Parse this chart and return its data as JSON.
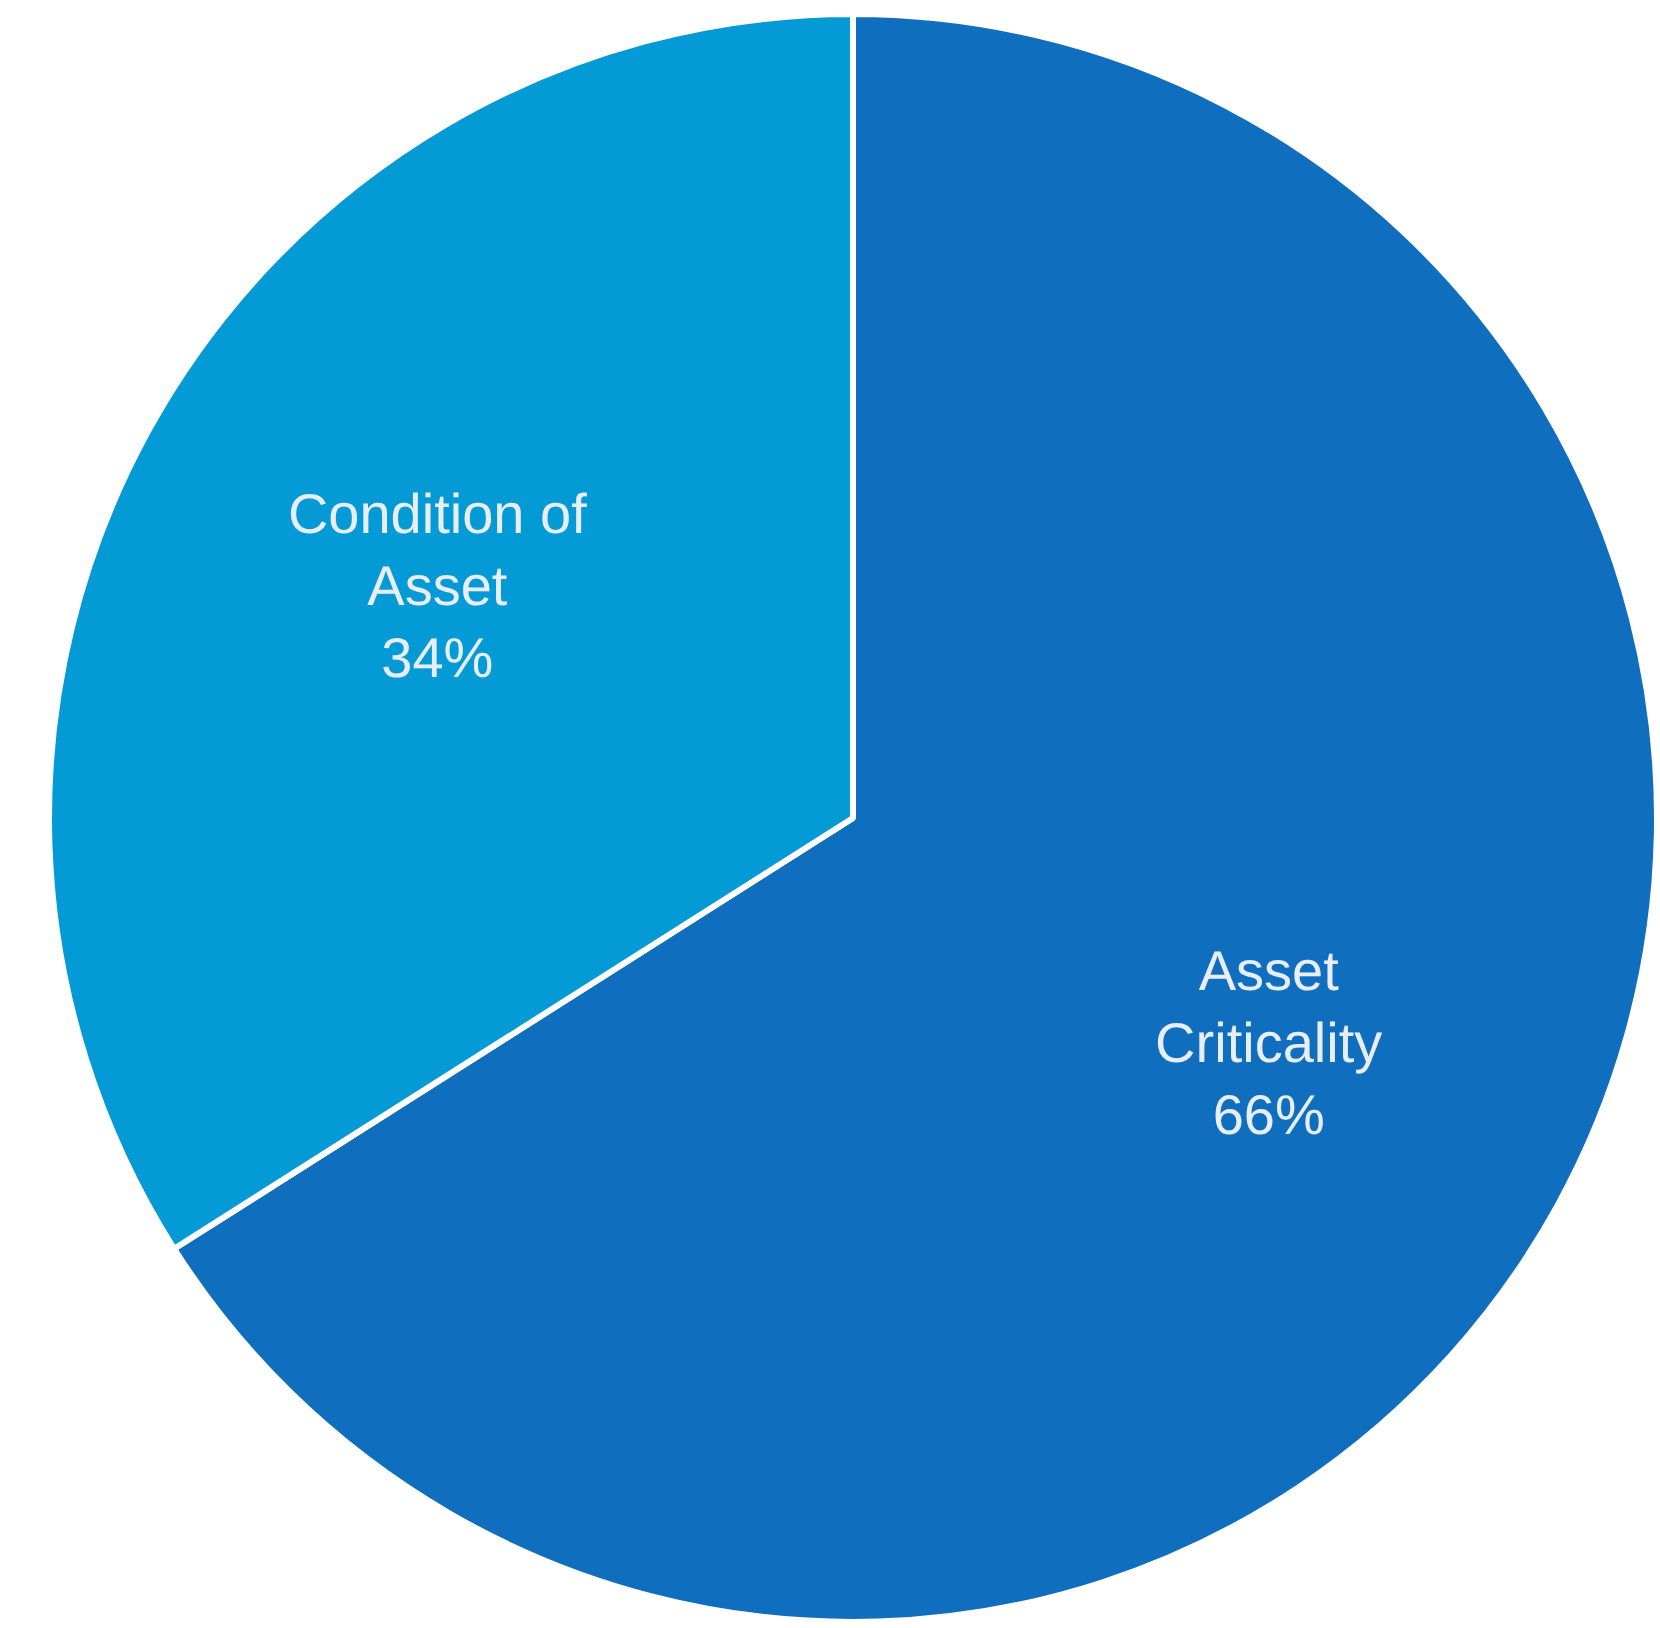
{
  "chart_data": {
    "type": "pie",
    "categories": [
      "Asset Criticality",
      "Condition of Asset"
    ],
    "values": [
      66,
      34
    ],
    "colors": [
      "#106ebe",
      "#039ad6"
    ],
    "value_labels": [
      "66%",
      "34%"
    ],
    "legend": false
  }
}
